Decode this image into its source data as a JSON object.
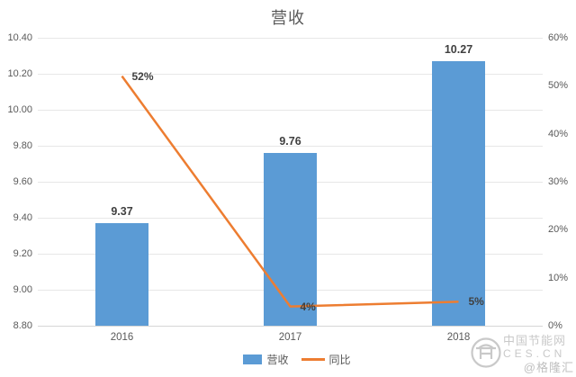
{
  "title": "营收",
  "chart_data": {
    "type": "bar+line",
    "title": "营收",
    "categories": [
      "2016",
      "2017",
      "2018"
    ],
    "series": [
      {
        "name": "营收",
        "type": "bar",
        "axis": "left",
        "color": "#5B9BD5",
        "values": [
          9.37,
          9.76,
          10.27
        ],
        "labels": [
          "9.37",
          "9.76",
          "10.27"
        ]
      },
      {
        "name": "同比",
        "type": "line",
        "axis": "right",
        "color": "#ED7D31",
        "values": [
          52,
          4,
          5
        ],
        "labels": [
          "52%",
          "4%",
          "5%"
        ]
      }
    ],
    "left_axis": {
      "min": 8.8,
      "max": 10.4,
      "step": 0.2,
      "tick_labels": [
        "8.80",
        "9.00",
        "9.20",
        "9.40",
        "9.60",
        "9.80",
        "10.00",
        "10.20",
        "10.40"
      ]
    },
    "right_axis": {
      "min": 0,
      "max": 60,
      "step": 10,
      "tick_labels": [
        "0%",
        "10%",
        "20%",
        "30%",
        "40%",
        "50%",
        "60%"
      ]
    },
    "grid": "horizontal gridlines from primary (left) axis",
    "legend_position": "bottom-center"
  },
  "legend": {
    "revenue_label": "营收",
    "yoy_label": "同比"
  },
  "watermark": {
    "site_name": "中国节能网",
    "site_domain": "CES.CN",
    "handle": "@格隆汇"
  },
  "colors": {
    "bar_blue": "#5B9BD5",
    "line_orange": "#ED7D31",
    "axis_text": "#595959",
    "data_label_text": "#404040",
    "gridline": "#E7E7E7",
    "watermark_gray": "#C9C9C9",
    "background": "#FFFFFF"
  }
}
